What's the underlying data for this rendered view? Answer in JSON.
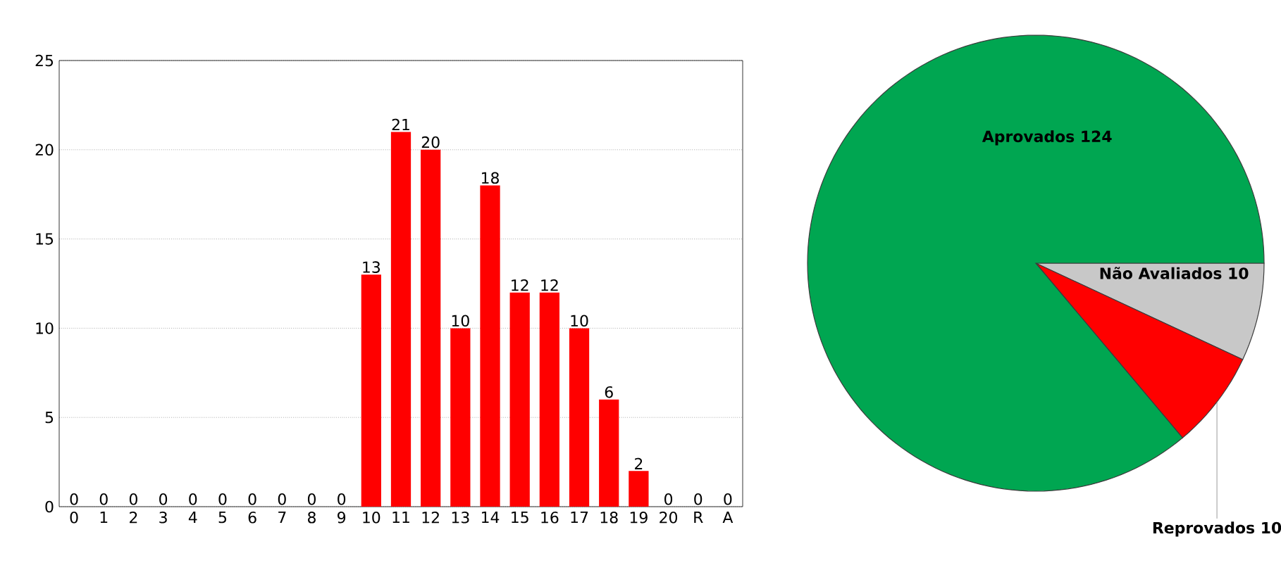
{
  "chart_data": [
    {
      "type": "bar",
      "categories": [
        "0",
        "1",
        "2",
        "3",
        "4",
        "5",
        "6",
        "7",
        "8",
        "9",
        "10",
        "11",
        "12",
        "13",
        "14",
        "15",
        "16",
        "17",
        "18",
        "19",
        "20",
        "R",
        "A"
      ],
      "values": [
        0,
        0,
        0,
        0,
        0,
        0,
        0,
        0,
        0,
        0,
        13,
        21,
        20,
        10,
        18,
        12,
        12,
        10,
        6,
        2,
        0,
        0,
        0
      ],
      "color": "#ff0000",
      "ylim": [
        0,
        25
      ],
      "yticks": [
        0,
        5,
        10,
        15,
        20,
        25
      ],
      "grid": "y",
      "data_labels": true
    },
    {
      "type": "pie",
      "categories": [
        "Não Avaliados",
        "Reprovados",
        "Aprovados"
      ],
      "values": [
        10,
        10,
        124
      ],
      "colors": [
        "#c8c8c8",
        "#ff0000",
        "#00a651"
      ],
      "data_labels": true
    }
  ]
}
